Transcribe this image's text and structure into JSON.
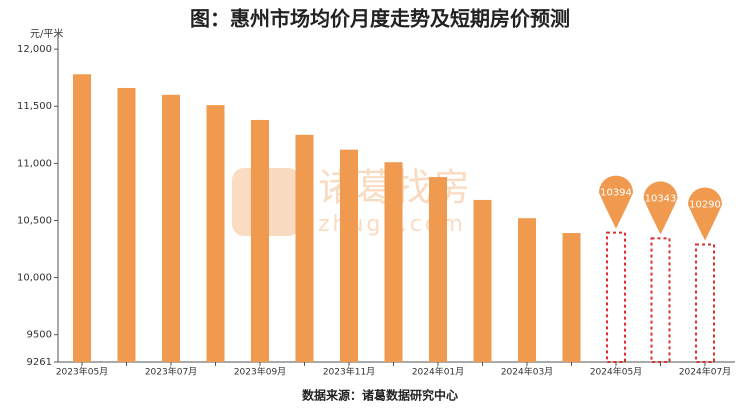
{
  "chart_data": {
    "type": "bar",
    "title": "图：惠州市场均价月度走势及短期房价预测",
    "y_unit": "元/平米",
    "source": "数据来源：诸葛数据研究中心",
    "watermark": [
      "诸葛找房",
      "zhuge.com"
    ],
    "categories": [
      "2023年05月",
      null,
      "2023年07月",
      null,
      "2023年09月",
      null,
      "2023年11月",
      null,
      "2024年01月",
      null,
      "2024年03月",
      null,
      "2024年05月",
      null,
      "2024年07月"
    ],
    "series": [
      {
        "color": "#ef9a4f",
        "values": [
          11780,
          11660,
          11600,
          11510,
          11380,
          11250,
          11120,
          11010,
          10880,
          10680,
          10520,
          10390,
          null,
          null,
          null
        ]
      },
      {
        "color": "#d9322e",
        "label_color": "#ef9a4f",
        "style": "dashed",
        "values": [
          null,
          null,
          null,
          null,
          null,
          null,
          null,
          null,
          null,
          null,
          null,
          null,
          10394,
          10343,
          10290
        ]
      }
    ],
    "ylim": [
      9261,
      12150
    ],
    "yticks": [
      9261,
      9500,
      {
        "value": 10000,
        "label": "10,000"
      },
      {
        "value": 10500,
        "label": "10,500"
      },
      {
        "value": 11000,
        "label": "11,000"
      },
      {
        "value": 11500,
        "label": "11,500"
      },
      {
        "value": 12000,
        "label": "12,000"
      }
    ]
  }
}
